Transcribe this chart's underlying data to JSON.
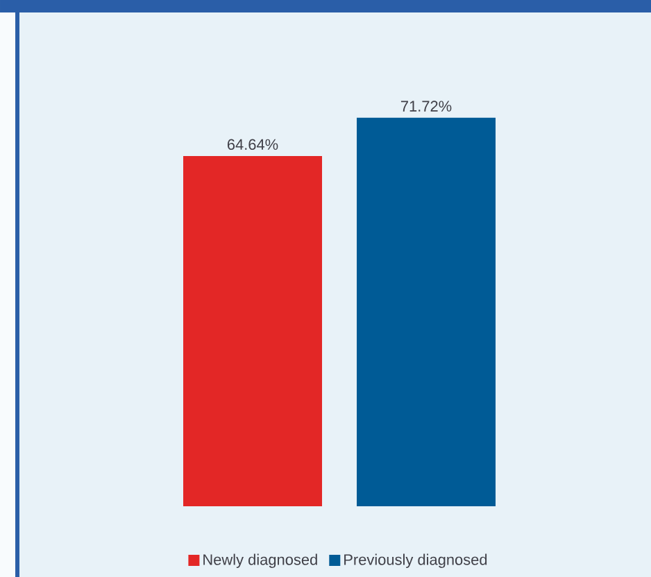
{
  "chart_data": {
    "type": "bar",
    "categories": [
      null
    ],
    "series": [
      {
        "name": "Newly diagnosed",
        "color": "#e32726",
        "values": [
          64.64
        ],
        "value_labels": [
          "64.64%"
        ]
      },
      {
        "name": "Previously diagnosed",
        "color": "#005b96",
        "values": [
          71.72
        ],
        "value_labels": [
          "71.72%"
        ]
      }
    ],
    "legend": "bottom"
  }
}
